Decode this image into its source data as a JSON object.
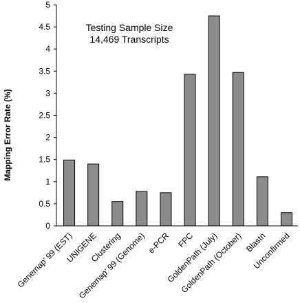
{
  "chart_data": {
    "type": "bar",
    "ylabel": "Mapping Error Rate (%)",
    "xlabel": "",
    "ylim": [
      0,
      5
    ],
    "yticks": [
      "0",
      "0.5",
      "1",
      "1.5",
      "2",
      "2.5",
      "3",
      "3.5",
      "4",
      "4.5",
      "5"
    ],
    "grid": false,
    "annotation": [
      "Testing Sample Size",
      "14,469 Transcripts"
    ],
    "categories": [
      "Genemap' 99 (EST)",
      "UNIGENE",
      "Clustering",
      "Genemap' 99 (Genome)",
      "e-PCR",
      "FPC",
      "GoldenPath (July)",
      "GoldenPath (October)",
      "Blastn",
      "Unconfirmed"
    ],
    "values": [
      1.49,
      1.4,
      0.55,
      0.78,
      0.75,
      3.43,
      4.75,
      3.47,
      1.11,
      0.3
    ],
    "bar_color": "#8c8c8c"
  }
}
